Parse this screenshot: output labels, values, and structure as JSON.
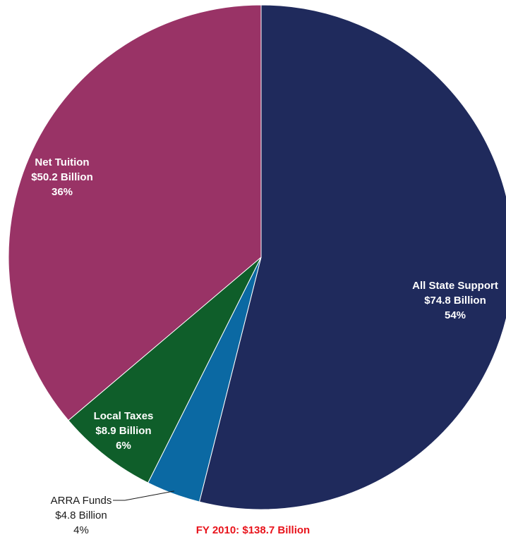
{
  "chart_data": {
    "type": "pie",
    "slices": [
      {
        "name": "All State Support",
        "value": 74.8,
        "amount_label": "$74.8 Billion",
        "percent_label": "54%",
        "color": "#1f2a5c",
        "label_color": "#ffffff"
      },
      {
        "name": "ARRA Funds",
        "value": 4.8,
        "amount_label": "$4.8 Billion",
        "percent_label": "4%",
        "color": "#0b69a3",
        "label_color": "#1a1a1a"
      },
      {
        "name": "Local Taxes",
        "value": 8.9,
        "amount_label": "$8.9 Billion",
        "percent_label": "6%",
        "color": "#0f5e2a",
        "label_color": "#ffffff"
      },
      {
        "name": "Net Tuition",
        "value": 50.2,
        "amount_label": "$50.2 Billion",
        "percent_label": "36%",
        "color": "#993366",
        "label_color": "#ffffff"
      }
    ],
    "start_angle": "12 o'clock",
    "direction": "clockwise",
    "footer": "FY 2010: $138.7 Billion",
    "footer_color": "#e8131b"
  }
}
